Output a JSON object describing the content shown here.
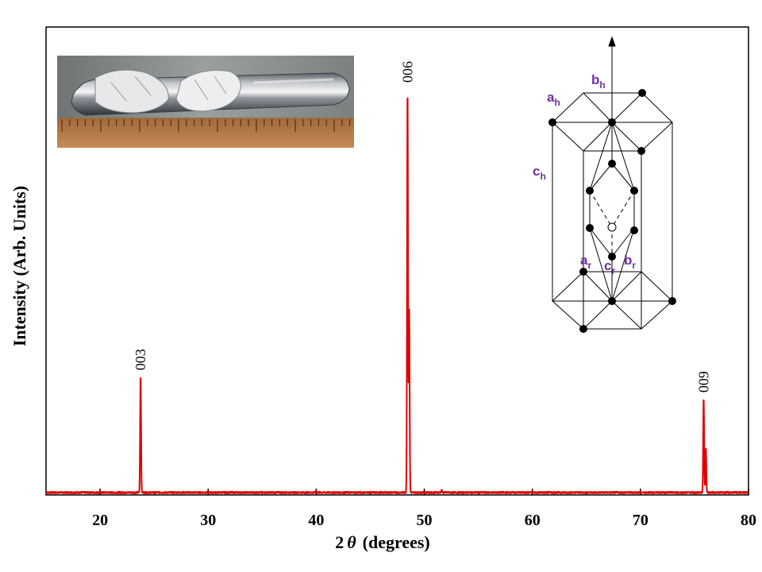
{
  "chart_data": {
    "type": "line",
    "xlabel_prefix": "2",
    "xlabel_symbol": "θ",
    "xlabel_suffix": "(degrees)",
    "ylabel": "Intensity (Arb. Units)",
    "xlim": [
      15,
      80
    ],
    "ylim": [
      0,
      1
    ],
    "xticks": [
      20,
      30,
      40,
      50,
      60,
      70,
      80
    ],
    "yticks_visible": false,
    "grid": false,
    "legend": "none",
    "series": [
      {
        "color": "#e00000",
        "peaks": [
          {
            "x": 23.75,
            "height": 0.29,
            "label": "003"
          },
          {
            "x": 48.45,
            "height": 1.0,
            "label": "006"
          },
          {
            "x": 75.85,
            "height": 0.235,
            "label": "009"
          }
        ],
        "minor_features": [
          {
            "x": 48.6,
            "height": 0.45
          },
          {
            "x": 51.6,
            "height": 0.006
          },
          {
            "x": 76.05,
            "height": 0.11
          },
          {
            "x": 40.0,
            "height": 0.004
          }
        ],
        "baseline": 0.004
      }
    ]
  },
  "inset_photo": {
    "description_icon": "crystal-ingot-photo"
  },
  "lattice_inset": {
    "labels": {
      "a_h": {
        "base": "a",
        "sub": "h"
      },
      "b_h": {
        "base": "b",
        "sub": "h"
      },
      "c_h": {
        "base": "c",
        "sub": "h"
      },
      "a_r": {
        "base": "a",
        "sub": "r"
      },
      "b_r": {
        "base": "b",
        "sub": "r"
      },
      "c_r": {
        "base": "c",
        "sub": "r"
      }
    },
    "label_color": "#7030a0"
  }
}
